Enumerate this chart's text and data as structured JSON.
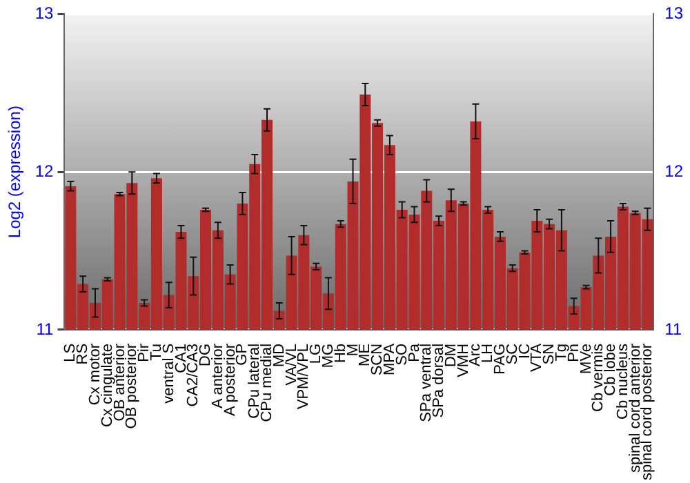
{
  "chart_data": {
    "type": "bar",
    "ylabel": "Log2 (expression)",
    "categories": [
      "LS",
      "RS",
      "Cx motor",
      "Cx cingulate",
      "OB anterior",
      "OB posterior",
      "Pir",
      "Tu",
      "ventral S",
      "CA1",
      "CA2/CA3",
      "DG",
      "A anterior",
      "A posterior",
      "GP",
      "CPu lateral",
      "CPu medial",
      "MD",
      "VA/VL",
      "VPM/VPL",
      "LG",
      "MG",
      "Hb",
      "M",
      "ME",
      "SCN",
      "MPA",
      "SO",
      "Pa",
      "SPa ventral",
      "SPa dorsal",
      "DM",
      "VMH",
      "Arc",
      "LH",
      "PAG",
      "SC",
      "IC",
      "VTA",
      "SN",
      "Tg",
      "Pn",
      "MVe",
      "Cb vermis",
      "Cb lobe",
      "Cb nucleus",
      "spinal cord anterior",
      "spinal cord posterior"
    ],
    "values": [
      11.91,
      11.29,
      11.17,
      11.32,
      11.86,
      11.93,
      11.17,
      11.96,
      11.22,
      11.62,
      11.34,
      11.76,
      11.63,
      11.35,
      11.8,
      12.05,
      12.33,
      11.12,
      11.47,
      11.6,
      11.4,
      11.23,
      11.67,
      11.94,
      12.49,
      12.31,
      12.17,
      11.76,
      11.73,
      11.88,
      11.69,
      11.82,
      11.8,
      12.32,
      11.76,
      11.59,
      11.39,
      11.49,
      11.69,
      11.67,
      11.63,
      11.15,
      11.27,
      11.47,
      11.59,
      11.78,
      11.74,
      11.7
    ],
    "errors": [
      0.03,
      0.05,
      0.09,
      0.01,
      0.01,
      0.07,
      0.02,
      0.03,
      0.08,
      0.04,
      0.12,
      0.01,
      0.05,
      0.06,
      0.07,
      0.06,
      0.07,
      0.05,
      0.12,
      0.06,
      0.02,
      0.1,
      0.02,
      0.14,
      0.07,
      0.02,
      0.06,
      0.05,
      0.05,
      0.07,
      0.03,
      0.07,
      0.01,
      0.11,
      0.02,
      0.03,
      0.02,
      0.01,
      0.07,
      0.03,
      0.13,
      0.05,
      0.01,
      0.11,
      0.1,
      0.02,
      0.01,
      0.07
    ],
    "color": "#b22c2c",
    "ylim": [
      11,
      13
    ],
    "yticks": [
      11,
      12,
      13
    ],
    "y2lim": [
      11,
      13
    ],
    "y2ticks": [
      11,
      12,
      13
    ],
    "grid": "y",
    "legend": false
  }
}
